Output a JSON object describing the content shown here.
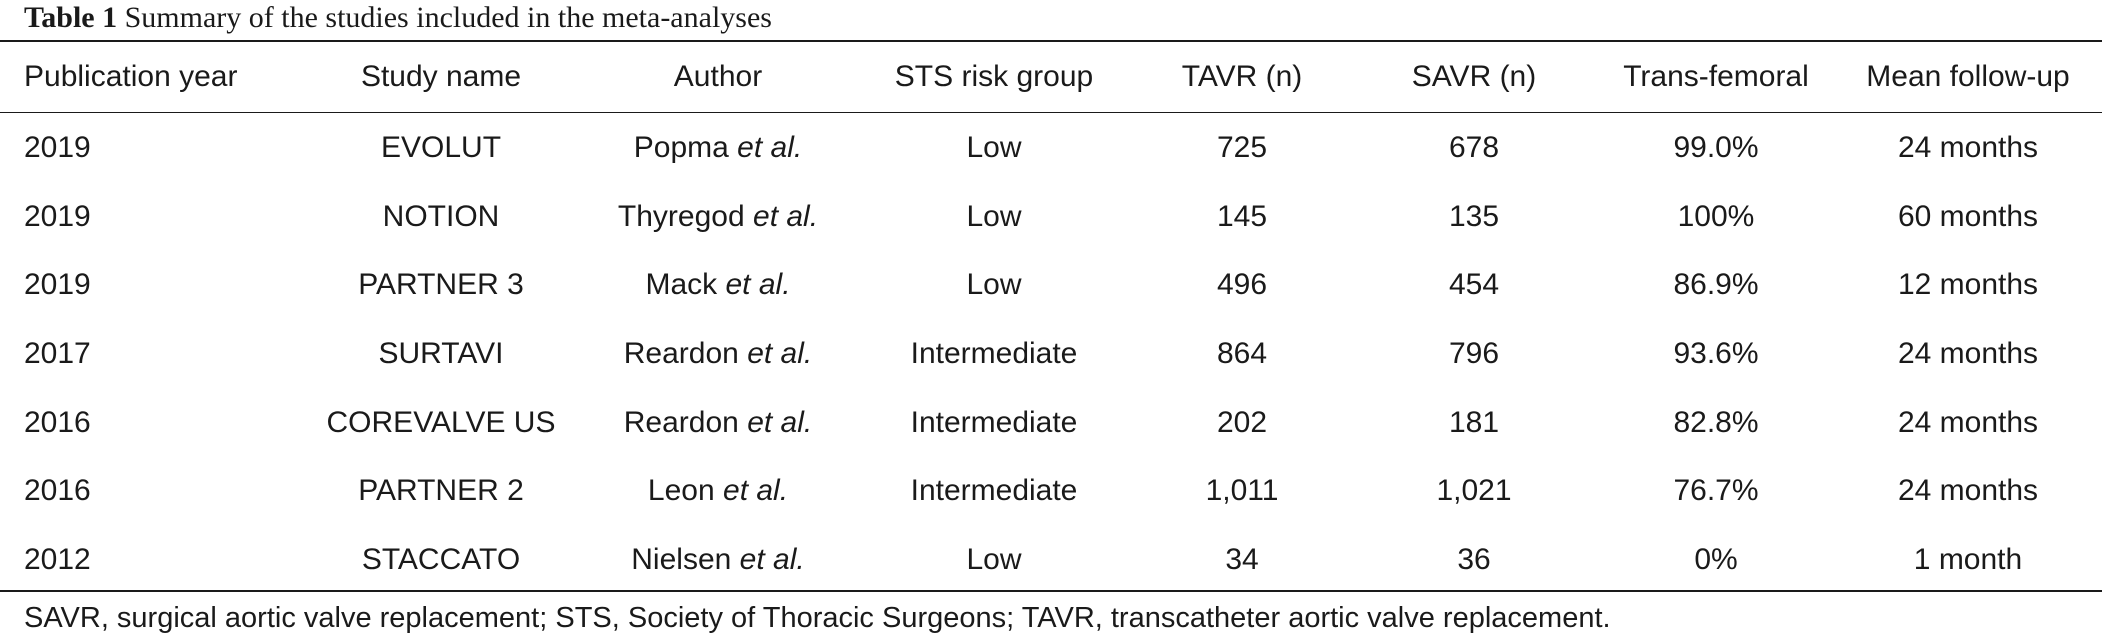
{
  "caption": {
    "label": "Table 1",
    "text": "Summary of the studies included in the meta-analyses"
  },
  "table": {
    "headers": [
      "Publication year",
      "Study name",
      "Author",
      "STS risk group",
      "TAVR (n)",
      "SAVR (n)",
      "Trans-femoral",
      "Mean follow-up"
    ],
    "rows": [
      {
        "year": "2019",
        "study": "EVOLUT",
        "author": "Popma",
        "author_suffix": "et al.",
        "risk": "Low",
        "tavr": "725",
        "savr": "678",
        "transfemoral": "99.0%",
        "followup": "24 months"
      },
      {
        "year": "2019",
        "study": "NOTION",
        "author": "Thyregod",
        "author_suffix": "et al.",
        "risk": "Low",
        "tavr": "145",
        "savr": "135",
        "transfemoral": "100%",
        "followup": "60 months"
      },
      {
        "year": "2019",
        "study": "PARTNER 3",
        "author": "Mack",
        "author_suffix": "et al.",
        "risk": "Low",
        "tavr": "496",
        "savr": "454",
        "transfemoral": "86.9%",
        "followup": "12 months"
      },
      {
        "year": "2017",
        "study": "SURTAVI",
        "author": "Reardon",
        "author_suffix": "et al.",
        "risk": "Intermediate",
        "tavr": "864",
        "savr": "796",
        "transfemoral": "93.6%",
        "followup": "24 months"
      },
      {
        "year": "2016",
        "study": "COREVALVE US",
        "author": "Reardon",
        "author_suffix": "et al.",
        "risk": "Intermediate",
        "tavr": "202",
        "savr": "181",
        "transfemoral": "82.8%",
        "followup": "24 months"
      },
      {
        "year": "2016",
        "study": "PARTNER 2",
        "author": "Leon",
        "author_suffix": "et al.",
        "risk": "Intermediate",
        "tavr": "1,011",
        "savr": "1,021",
        "transfemoral": "76.7%",
        "followup": "24 months"
      },
      {
        "year": "2012",
        "study": "STACCATO",
        "author": "Nielsen",
        "author_suffix": "et al.",
        "risk": "Low",
        "tavr": "34",
        "savr": "36",
        "transfemoral": "0%",
        "followup": "1 month"
      }
    ]
  },
  "footnote": "SAVR, surgical aortic valve replacement; STS, Society of Thoracic Surgeons; TAVR, transcatheter aortic valve replacement."
}
